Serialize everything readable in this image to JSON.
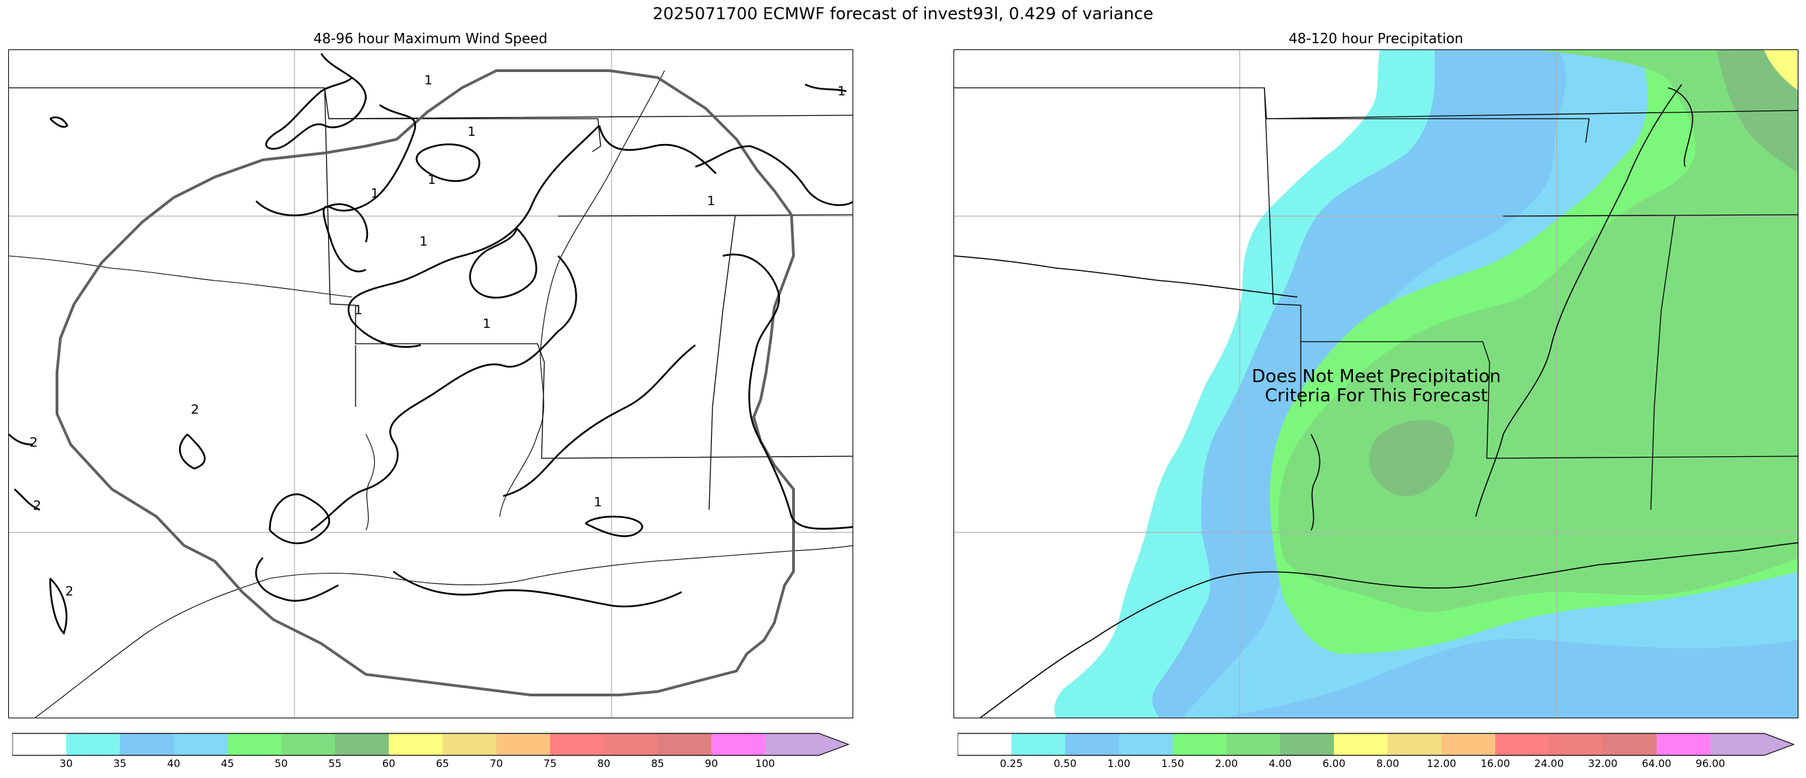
{
  "figure": {
    "title": "2025071700 ECMWF forecast of invest93l, 0.429 of variance"
  },
  "wind_panel": {
    "title": "48-96 hour Maximum Wind Speed",
    "contour_labels": [
      "1",
      "1",
      "1",
      "1",
      "1",
      "1",
      "1",
      "1",
      "1",
      "1",
      "2",
      "2",
      "2",
      "2"
    ],
    "colorbar": {
      "colors": [
        "#ffffff",
        "#7ff5f0",
        "#7ec8f5",
        "#82d8f7",
        "#7cf77c",
        "#7ede7e",
        "#7ec27e",
        "#fdfd7f",
        "#f1de83",
        "#fdc480",
        "#fe8080",
        "#f07f7f",
        "#df7f7f",
        "#ff80f6",
        "#c8a6e0"
      ],
      "tick_labels": [
        "30",
        "35",
        "40",
        "45",
        "50",
        "55",
        "60",
        "65",
        "70",
        "75",
        "80",
        "85",
        "90",
        "100"
      ]
    }
  },
  "precip_panel": {
    "title": "48-120 hour Precipitation",
    "note_line1": "Does Not Meet Precipitation",
    "note_line2": "Criteria For This Forecast",
    "colorbar": {
      "colors": [
        "#ffffff",
        "#7ff5f0",
        "#7ec8f5",
        "#82d8f7",
        "#7cf77c",
        "#7ede7e",
        "#7ec27e",
        "#fdfd7f",
        "#f1de83",
        "#fdc480",
        "#fe8080",
        "#f07f7f",
        "#df7f7f",
        "#ff80f6",
        "#c8a6e0"
      ],
      "tick_labels": [
        "0.25",
        "0.50",
        "1.00",
        "1.50",
        "2.00",
        "4.00",
        "6.00",
        "8.00",
        "12.00",
        "16.00",
        "24.00",
        "32.00",
        "64.00",
        "96.00"
      ]
    }
  }
}
